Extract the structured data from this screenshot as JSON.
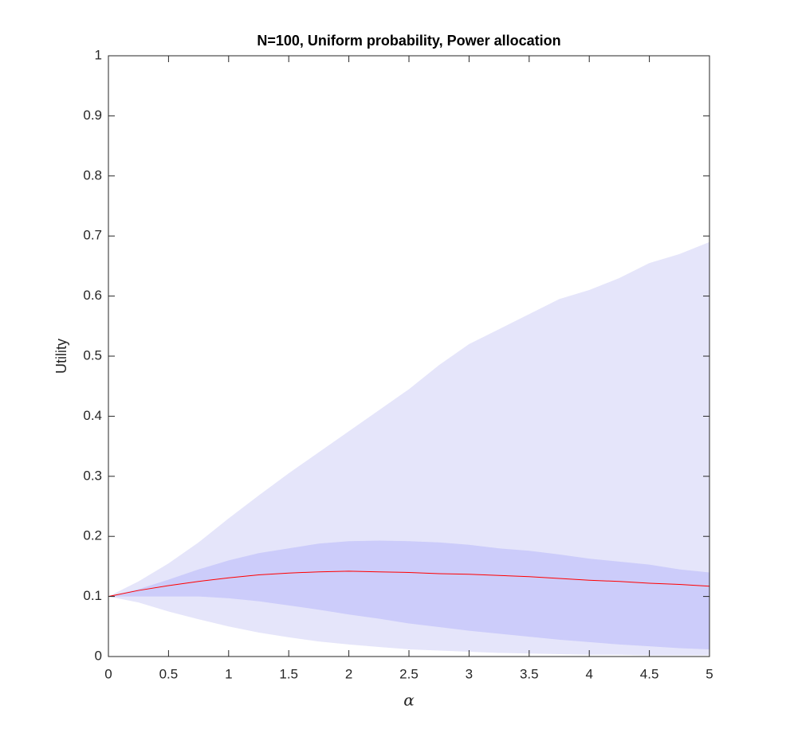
{
  "chart_data": {
    "type": "band",
    "title": "N=100, Uniform probability, Power allocation",
    "xlabel": "α",
    "ylabel": "Utility",
    "x": [
      0,
      0.25,
      0.5,
      0.75,
      1,
      1.25,
      1.5,
      1.75,
      2,
      2.25,
      2.5,
      2.75,
      3,
      3.25,
      3.5,
      3.75,
      4,
      4.25,
      4.5,
      4.75,
      5
    ],
    "bands": [
      {
        "color": "#e5e5fa",
        "upper": [
          0.1,
          0.125,
          0.155,
          0.19,
          0.23,
          0.268,
          0.305,
          0.34,
          0.375,
          0.41,
          0.445,
          0.485,
          0.52,
          0.545,
          0.57,
          0.595,
          0.61,
          0.63,
          0.655,
          0.67,
          0.69
        ],
        "lower": [
          0.1,
          0.09,
          0.075,
          0.062,
          0.05,
          0.04,
          0.032,
          0.025,
          0.02,
          0.016,
          0.012,
          0.01,
          0.008,
          0.006,
          0.005,
          0.004,
          0.003,
          0.003,
          0.002,
          0.002,
          0.002
        ]
      },
      {
        "color": "#ccccfa",
        "upper": [
          0.1,
          0.112,
          0.128,
          0.145,
          0.16,
          0.172,
          0.18,
          0.188,
          0.192,
          0.193,
          0.192,
          0.19,
          0.186,
          0.18,
          0.176,
          0.17,
          0.163,
          0.158,
          0.153,
          0.145,
          0.14
        ],
        "lower": [
          0.1,
          0.1,
          0.1,
          0.1,
          0.097,
          0.092,
          0.085,
          0.078,
          0.07,
          0.063,
          0.055,
          0.049,
          0.043,
          0.038,
          0.033,
          0.028,
          0.024,
          0.02,
          0.017,
          0.014,
          0.012
        ]
      }
    ],
    "series": [
      {
        "color": "#ff0000",
        "values": [
          0.1,
          0.11,
          0.118,
          0.125,
          0.131,
          0.136,
          0.139,
          0.141,
          0.142,
          0.141,
          0.14,
          0.138,
          0.137,
          0.135,
          0.133,
          0.13,
          0.127,
          0.125,
          0.122,
          0.12,
          0.117
        ]
      }
    ],
    "xlim": [
      0,
      5
    ],
    "xticks": [
      0,
      0.5,
      1,
      1.5,
      2,
      2.5,
      3,
      3.5,
      4,
      4.5,
      5
    ],
    "ylim": [
      0,
      1
    ],
    "yticks": [
      0,
      0.1,
      0.2,
      0.3,
      0.4,
      0.5,
      0.6,
      0.7,
      0.8,
      0.9,
      1
    ],
    "grid": false
  }
}
